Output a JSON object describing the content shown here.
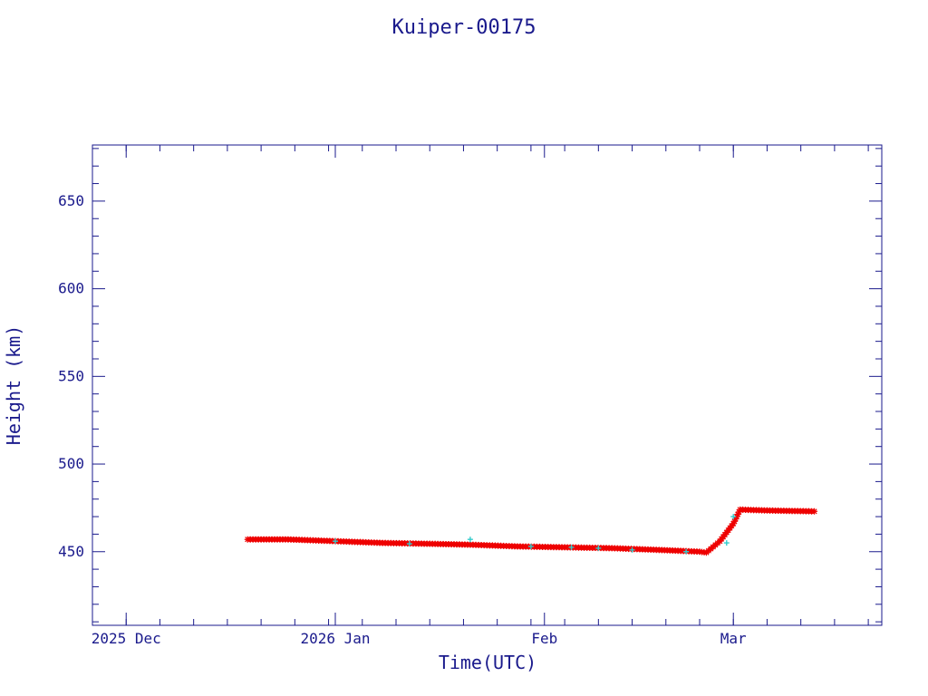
{
  "colors": {
    "axis": "#1a1a8c",
    "primary_marker": "#ee0000",
    "secondary_marker": "#33cccc",
    "background": "#ffffff"
  },
  "chart_data": {
    "type": "scatter",
    "title": "Kuiper-00175",
    "xlabel": "Time(UTC)",
    "ylabel": "Height (km)",
    "xlim": [
      "2025-11-26",
      "2026-03-23"
    ],
    "ylim": [
      408,
      682
    ],
    "x_ticks": [
      {
        "date": "2025-12-01",
        "label": "2025 Dec"
      },
      {
        "date": "2026-01-01",
        "label": "2026 Jan"
      },
      {
        "date": "2026-02-01",
        "label": "Feb"
      },
      {
        "date": "2026-03-01",
        "label": "Mar"
      }
    ],
    "y_ticks": [
      450,
      500,
      550,
      600,
      650
    ],
    "y_minor_step": 10,
    "x_minor_step_days": 5,
    "grid": false,
    "series": [
      {
        "marker": "star",
        "color": "#ee0000",
        "x": [
          "2025-12-19",
          "2025-12-25",
          "2026-01-01",
          "2026-01-08",
          "2026-01-15",
          "2026-01-21",
          "2026-01-28",
          "2026-02-04",
          "2026-02-11",
          "2026-02-18",
          "2026-02-24",
          "2026-02-25",
          "2026-02-27",
          "2026-03-01",
          "2026-03-02",
          "2026-03-06",
          "2026-03-13"
        ],
        "y": [
          457,
          457,
          456,
          455,
          454.5,
          454,
          453,
          452.5,
          452,
          451,
          450,
          449.5,
          456,
          466,
          474,
          473.5,
          473
        ]
      },
      {
        "marker": "plus",
        "color": "#33cccc",
        "x": [
          "2026-01-01",
          "2026-01-12",
          "2026-01-21",
          "2026-01-30",
          "2026-02-05",
          "2026-02-09",
          "2026-02-14",
          "2026-02-22",
          "2026-02-28",
          "2026-03-01"
        ],
        "y": [
          456,
          454.5,
          457,
          453,
          452.5,
          452,
          451,
          450,
          455,
          470
        ]
      }
    ]
  }
}
